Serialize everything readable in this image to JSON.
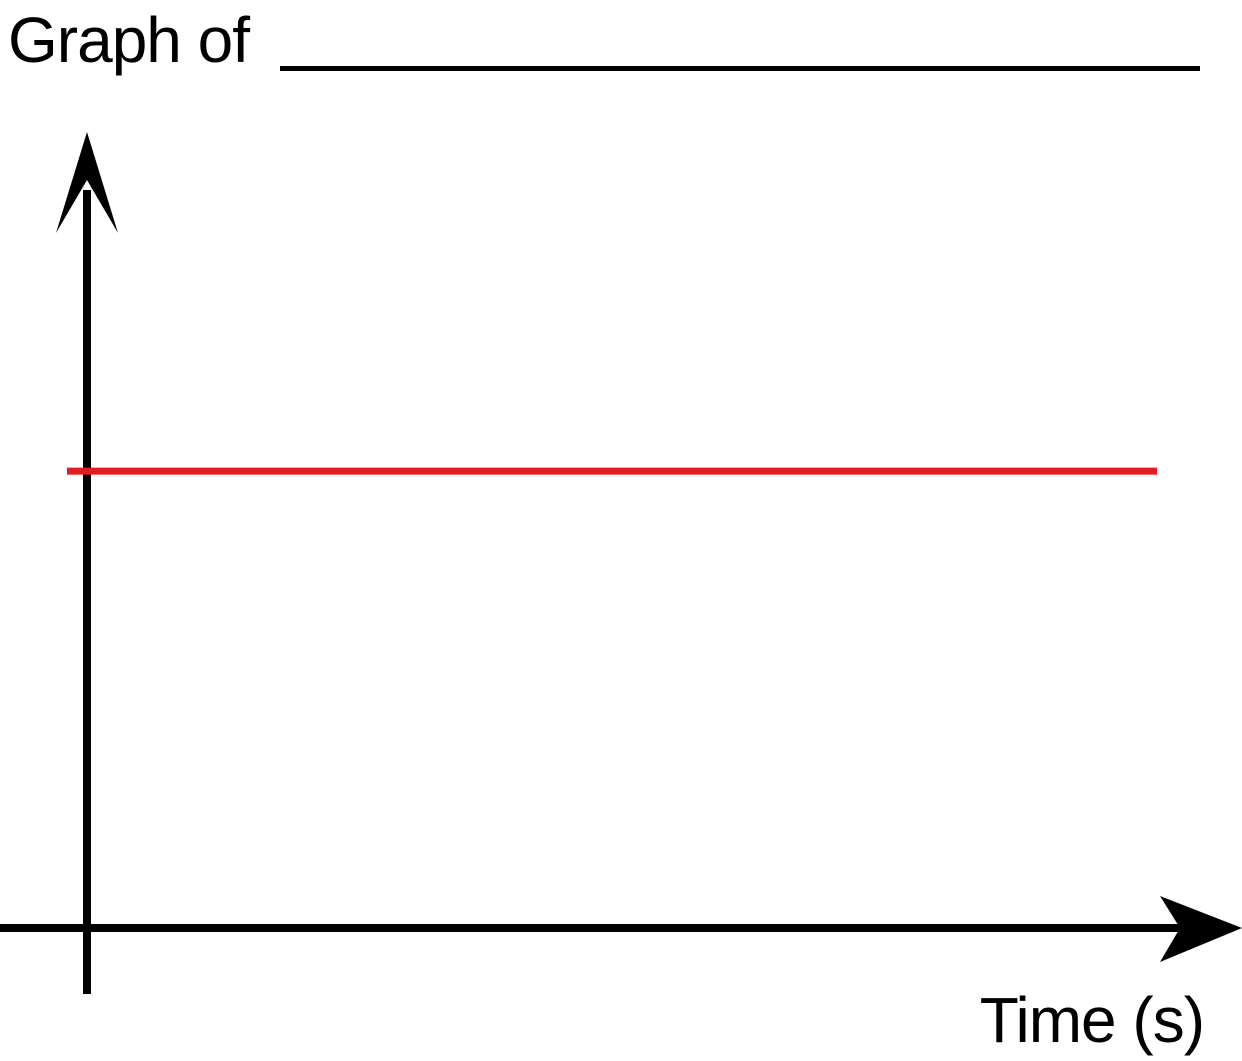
{
  "chart_data": {
    "type": "line",
    "title": "Graph of",
    "xlabel": "Time (s)",
    "ylabel": "",
    "x": [
      0,
      1
    ],
    "series": [
      {
        "values": [
          1,
          1
        ],
        "color": "#e31b23"
      }
    ],
    "ylim": [
      0,
      1.75
    ],
    "grid": false,
    "legend": "none",
    "axis_color": "#000000"
  }
}
